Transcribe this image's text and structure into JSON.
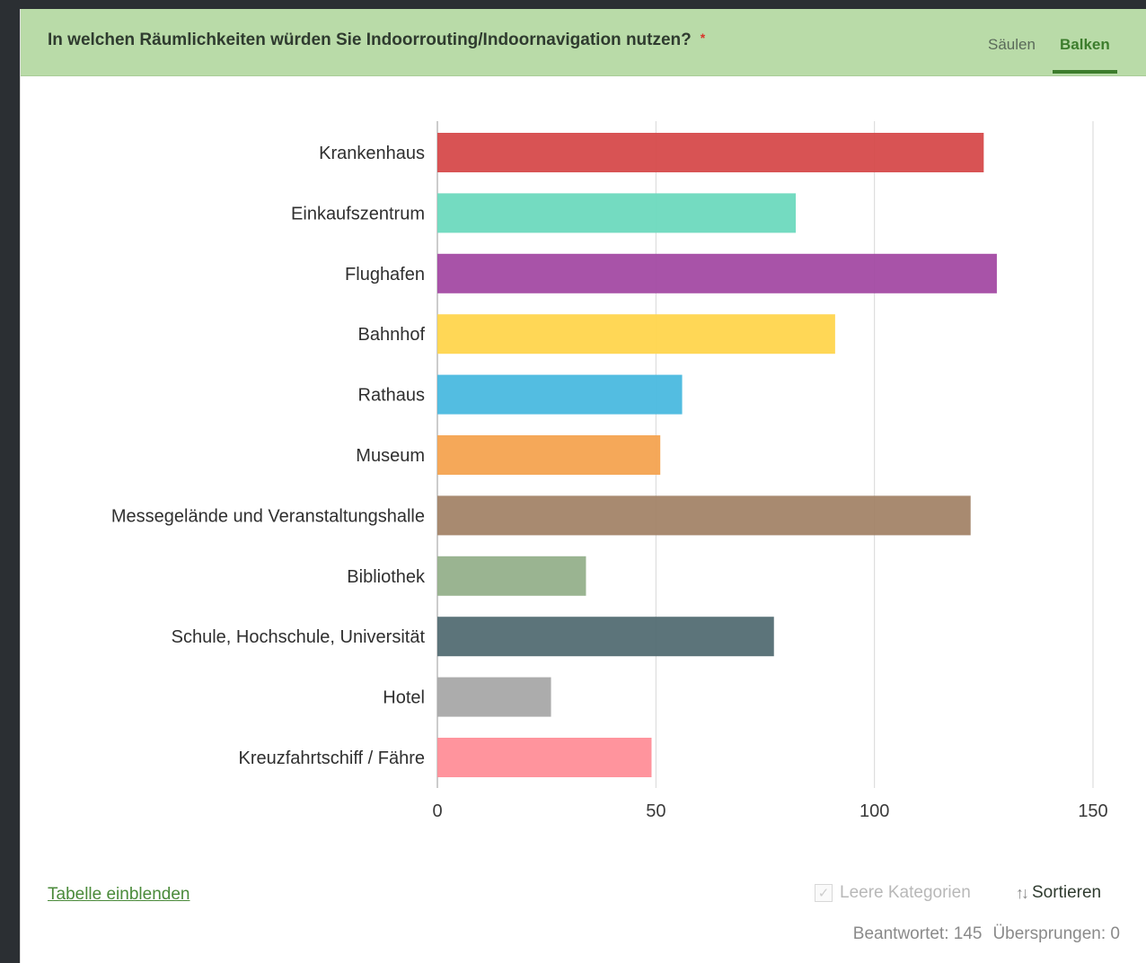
{
  "header": {
    "question": "In welchen Räumlichkeiten würden Sie Indoorrouting/Indoornavigation nutzen?",
    "required_marker": "*",
    "tabs": [
      {
        "label": "Säulen",
        "active": false
      },
      {
        "label": "Balken",
        "active": true
      }
    ]
  },
  "chart_data": {
    "type": "bar",
    "orientation": "horizontal",
    "categories": [
      "Krankenhaus",
      "Einkaufszentrum",
      "Flughafen",
      "Bahnhof",
      "Rathaus",
      "Museum",
      "Messegelände und Veranstaltungshalle",
      "Bibliothek",
      "Schule, Hochschule, Universität",
      "Hotel",
      "Kreuzfahrtschiff / Fähre"
    ],
    "values": [
      125,
      82,
      128,
      91,
      56,
      51,
      122,
      34,
      77,
      26,
      49
    ],
    "colors": [
      "#d64a4b",
      "#6dd9be",
      "#a34aa3",
      "#ffd54d",
      "#4ab9df",
      "#f4a350",
      "#a38468",
      "#95b08b",
      "#536d73",
      "#a8a8a8",
      "#ff8e98"
    ],
    "xlim": [
      0,
      150
    ],
    "xticks": [
      0,
      50,
      100,
      150
    ],
    "grid": true,
    "title": "",
    "xlabel": "",
    "ylabel": ""
  },
  "footer": {
    "show_table_link": "Tabelle einblenden",
    "empty_categories_label": "Leere Kategorien",
    "sort_label": "Sortieren",
    "answered": "Beantwortet: 145",
    "skipped": "Übersprungen: 0"
  },
  "colors": {
    "header_bg": "#b9dba8",
    "accent": "#3d7d2d",
    "required": "#d9342b"
  }
}
